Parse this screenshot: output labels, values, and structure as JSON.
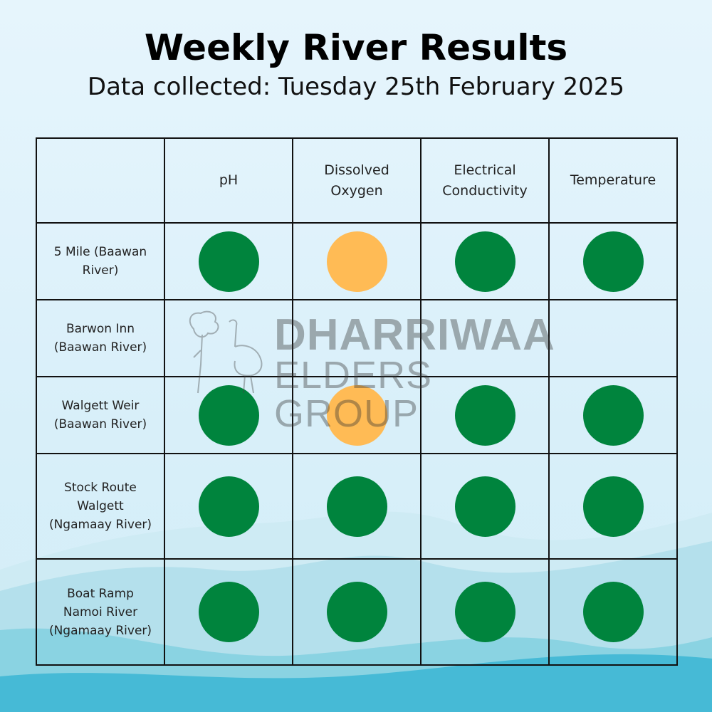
{
  "header": {
    "title": "Weekly River Results",
    "subtitle": "Data collected: Tuesday 25th February 2025"
  },
  "colors": {
    "good": "#00843d",
    "caution": "#ffbb55"
  },
  "table": {
    "columns": [
      "pH",
      "Dissolved Oxygen",
      "Electrical Conductivity",
      "Temperature"
    ],
    "rows": [
      {
        "site": "5 Mile (Baawan River)",
        "results": [
          "good",
          "caution",
          "good",
          "good"
        ]
      },
      {
        "site": "Barwon Inn (Baawan River)",
        "results": [
          "",
          "",
          "",
          ""
        ]
      },
      {
        "site": "Walgett Weir (Baawan River)",
        "results": [
          "good",
          "caution",
          "good",
          "good"
        ]
      },
      {
        "site": "Stock Route Walgett (Ngamaay River)",
        "results": [
          "good",
          "good",
          "good",
          "good"
        ]
      },
      {
        "site": "Boat Ramp Namoi River (Ngamaay River)",
        "results": [
          "good",
          "good",
          "good",
          "good"
        ]
      }
    ]
  },
  "watermark": {
    "line1": "DHARRIWAA",
    "line2": "ELDERS GROUP"
  }
}
